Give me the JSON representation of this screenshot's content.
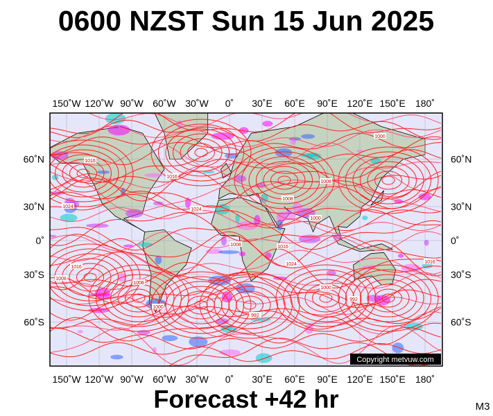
{
  "map": {
    "title": "0600 NZST Sun 15 Jun 2025",
    "lon_ticks": [
      "150˚W",
      "120˚W",
      "90˚W",
      "60˚W",
      "30˚W",
      "0˚",
      "30˚E",
      "60˚E",
      "90˚E",
      "120˚E",
      "150˚E",
      "180˚"
    ],
    "lat_ticks": [
      "60˚N",
      "30˚N",
      "0˚",
      "30˚S",
      "60˚S"
    ],
    "isobar_labels": [
      "1016",
      "1016",
      "1016",
      "1024",
      "1008",
      "1008",
      "1008",
      "1000",
      "1016",
      "1024",
      "1008",
      "992",
      "1000",
      "1000",
      "992",
      "1016",
      "1008",
      "1024",
      "1000"
    ],
    "copyright": "Copyright metvuw.com",
    "footer": "Forecast +42 hr",
    "model": "M3"
  }
}
